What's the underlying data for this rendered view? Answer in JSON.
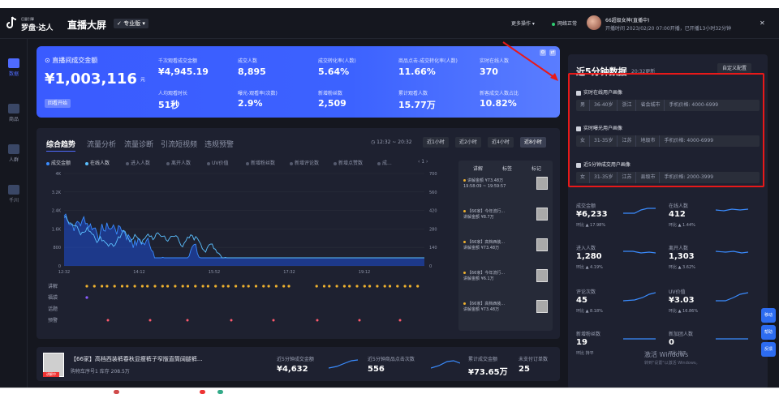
{
  "colors": {
    "accent": "#4f6bff",
    "kpi_gradient": "#3c62ff",
    "positive": "#2ecc71",
    "annotation_red": "#e81919",
    "series_gmv": "#3a8cff",
    "series_online": "#5bc0ff"
  },
  "header": {
    "brand_small": "巨量引擎",
    "brand": "罗盘·达人",
    "title": "直播大屏",
    "version": "专业版",
    "more": "更多操作",
    "network": "网络正常",
    "live_name": "66超级女神(直播中)",
    "live_time": "开播时间 2023/02/20 07:00开播，已开播13小时32分钟",
    "close_icon": "close-icon"
  },
  "sidebar": {
    "items": [
      {
        "label": "数据",
        "icon": "data-icon"
      },
      {
        "label": "商品",
        "icon": "goods-icon"
      },
      {
        "label": "人群",
        "icon": "crowd-icon"
      },
      {
        "label": "千川",
        "icon": "qianchuan-icon"
      }
    ]
  },
  "kpi": {
    "gmv_label": "直播间成交金额",
    "gmv_value": "¥1,003,116",
    "gmv_unit": "元",
    "chip": "回看开始",
    "metrics": [
      {
        "label": "千次观看成交金额",
        "value": "¥4,945.19"
      },
      {
        "label": "成交人数",
        "value": "8,895"
      },
      {
        "label": "成交转化率(人数)",
        "value": "5.64%"
      },
      {
        "label": "商品点击-成交转化率(人数)",
        "value": "11.66%"
      },
      {
        "label": "实时在线人数",
        "value": "370"
      },
      {
        "label": "人均观看时长",
        "value": "51秒"
      },
      {
        "label": "曝光-观看率(次数)",
        "value": "2.9%"
      },
      {
        "label": "新增粉丝数",
        "value": "2,509"
      },
      {
        "label": "累计观看人数",
        "value": "15.77万"
      },
      {
        "label": "新客成交人数占比",
        "value": "10.82%"
      }
    ]
  },
  "trend": {
    "tabs": [
      "综合趋势",
      "流量分析",
      "流量诊断",
      "引流短视频",
      "违规预警"
    ],
    "range": "12:32 ~ 20:32",
    "segments": [
      "近1小时",
      "近2小时",
      "近4小时",
      "近8小时"
    ],
    "legend": [
      "成交金额",
      "在线人数",
      "进入人数",
      "离开人数",
      "UV价值",
      "新增粉丝数",
      "新增评论数",
      "新增点赞数",
      "成..."
    ],
    "event_rows": [
      "讲解",
      "福袋",
      "话题",
      "预警"
    ]
  },
  "chart_data": {
    "type": "line",
    "x": [
      "12:32",
      "14:12",
      "15:52",
      "17:32",
      "19:12"
    ],
    "yleft_ticks": [
      "0",
      "800",
      "1.6K",
      "2.4K",
      "3.2K",
      "4K"
    ],
    "yright_ticks": [
      "0",
      "140",
      "280",
      "420",
      "560",
      "700"
    ],
    "series": [
      {
        "name": "成交金额",
        "color": "#3a8cff"
      },
      {
        "name": "在线人数",
        "color": "#5bc0ff"
      }
    ],
    "ylim_left": [
      0,
      4000
    ],
    "ylim_right": [
      0,
      700
    ]
  },
  "comments": {
    "headers": [
      "讲解",
      "标签",
      "标记"
    ],
    "items": [
      {
        "text": "讲解金额 ¥73.48万",
        "time": "19:58:09 ~ 19:59:57"
      },
      {
        "text": "【66家】今年流行...",
        "time": "讲解金额 ¥8.7万"
      },
      {
        "text": "【66家】高档西装...",
        "time": "讲解金额 ¥73.48万"
      },
      {
        "text": "【66家】今年流行...",
        "time": "讲解金额 ¥6.1万"
      },
      {
        "text": "【66家】高档西装...",
        "time": "讲解金额 ¥73.48万"
      }
    ]
  },
  "product": {
    "tag": "讲解中",
    "name": "【66家】高档西装裤春秋显瘦裤子窄版直筒阔腿裤...",
    "sub": "购物车序号1 库存 208.5万",
    "metrics": [
      {
        "label": "近5分钟成交金额",
        "value": "¥4,632"
      },
      {
        "label": "近5分钟商品点击次数",
        "value": "556"
      },
      {
        "label": "累计成交金额",
        "value": "¥73.65万"
      },
      {
        "label": "未支付订单数",
        "value": "25"
      }
    ]
  },
  "right": {
    "title": "近5分钟数据",
    "time": "20:32更新",
    "button": "自定义配置",
    "personas": [
      {
        "title": "实时在线用户画像",
        "tags": [
          "男",
          "36-40岁",
          "浙江",
          "省会城市",
          "手机价格: 4000-6999"
        ]
      },
      {
        "title": "实时曝光用户画像",
        "tags": [
          "女",
          "31-35岁",
          "江苏",
          "地级市",
          "手机价格: 4000-6999"
        ]
      },
      {
        "title": "近5分钟成交用户画像",
        "tags": [
          "女",
          "31-35岁",
          "江苏",
          "县级市",
          "手机价格: 2000-3999"
        ]
      }
    ],
    "metrics": [
      {
        "label": "成交金额",
        "value": "¥6,233",
        "change": "环比 ▲ 17.98%"
      },
      {
        "label": "在线人数",
        "value": "412",
        "change": "环比 ▲ 1.44%"
      },
      {
        "label": "进入人数",
        "value": "1,280",
        "change": "环比 ▲ 4.19%"
      },
      {
        "label": "离开人数",
        "value": "1,303",
        "change": "环比 ▲ 3.62%"
      },
      {
        "label": "评论次数",
        "value": "45",
        "change": "环比 ▲ 8.18%"
      },
      {
        "label": "UV价值",
        "value": "¥3.03",
        "change": "环比 ▲ 16.86%"
      },
      {
        "label": "新增粉丝数",
        "value": "19",
        "change": "环比 持平"
      },
      {
        "label": "新加团人数",
        "value": "0",
        "change": "环比 持平"
      }
    ]
  },
  "watermark": {
    "line1": "激活 Windows",
    "line2": "转到\"设置\"以激活 Windows。"
  },
  "float": [
    "移动",
    "帮助",
    "反馈"
  ]
}
